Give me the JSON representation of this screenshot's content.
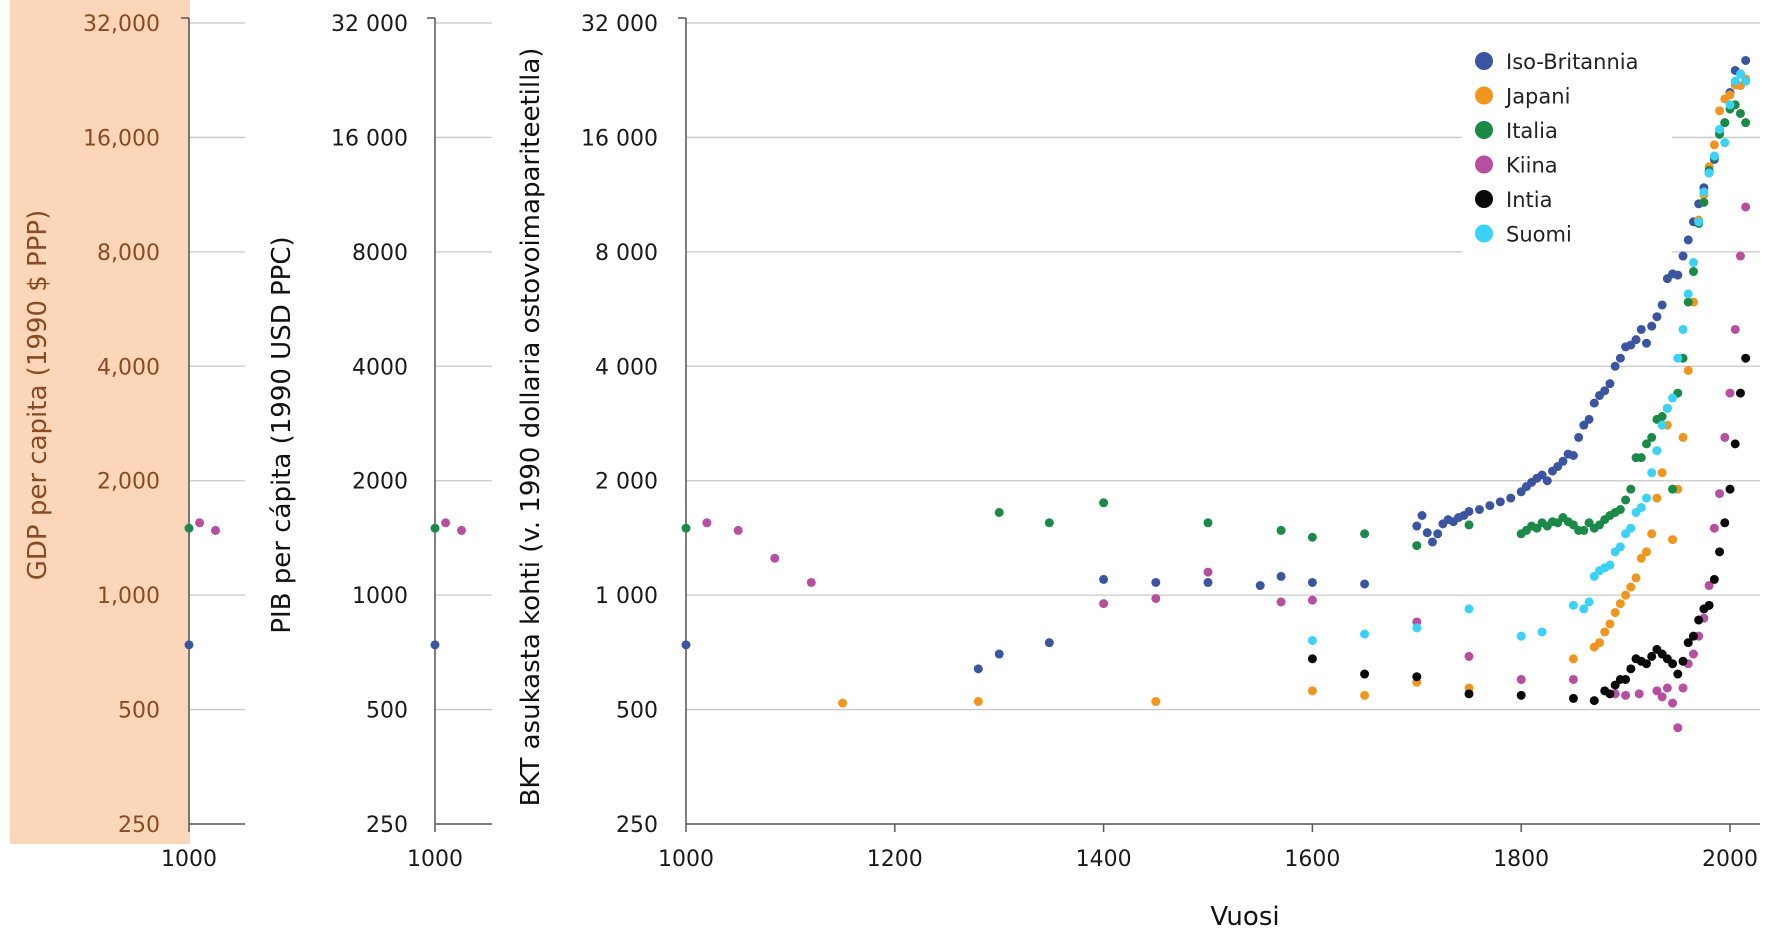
{
  "chart_data": {
    "type": "scatter",
    "xlabel": "Vuosi",
    "ylabel": "BKT asukasta kohti (v. 1990 dollaria ostovoimapariteetilla)",
    "ylabel_left": "GDP per capita (1990 $ PPP)",
    "ylabel_middle": "PIB per cápita (1990 USD PPC)",
    "y_scale": "log2",
    "ylim": [
      250,
      32000
    ],
    "xlim": [
      1000,
      2020
    ],
    "x_ticks": [
      "1000",
      "1200",
      "1400",
      "1600",
      "1800",
      "2000"
    ],
    "y_ticks": [
      250,
      500,
      1000,
      2000,
      4000,
      8000,
      16000,
      32000
    ],
    "y_tick_labels_left": [
      "250",
      "500",
      "1,000",
      "2,000",
      "4,000",
      "8,000",
      "16,000",
      "32,000"
    ],
    "y_tick_labels_middle": [
      "250",
      "500",
      "1000",
      "2000",
      "4000",
      "8000",
      "16 000",
      "32 000"
    ],
    "y_tick_labels_main": [
      "250",
      "500",
      "1 000",
      "2 000",
      "4 000",
      "8 000",
      "16 000",
      "32 000"
    ],
    "x_tick_label_small": "1000",
    "legend_position": "top-right",
    "grid": true,
    "series": [
      {
        "name": "Iso-Britannia",
        "color": "#3c55a0",
        "points": [
          [
            1000,
            740
          ],
          [
            1280,
            640
          ],
          [
            1300,
            700
          ],
          [
            1348,
            750
          ],
          [
            1400,
            1100
          ],
          [
            1450,
            1080
          ],
          [
            1500,
            1080
          ],
          [
            1550,
            1060
          ],
          [
            1570,
            1120
          ],
          [
            1600,
            1080
          ],
          [
            1650,
            1070
          ],
          [
            1700,
            1520
          ],
          [
            1705,
            1620
          ],
          [
            1710,
            1460
          ],
          [
            1715,
            1380
          ],
          [
            1720,
            1450
          ],
          [
            1725,
            1540
          ],
          [
            1730,
            1580
          ],
          [
            1735,
            1560
          ],
          [
            1740,
            1600
          ],
          [
            1745,
            1620
          ],
          [
            1750,
            1660
          ],
          [
            1760,
            1680
          ],
          [
            1770,
            1720
          ],
          [
            1780,
            1760
          ],
          [
            1790,
            1800
          ],
          [
            1800,
            1870
          ],
          [
            1805,
            1930
          ],
          [
            1810,
            1980
          ],
          [
            1815,
            2030
          ],
          [
            1820,
            2070
          ],
          [
            1825,
            2000
          ],
          [
            1830,
            2120
          ],
          [
            1835,
            2180
          ],
          [
            1840,
            2250
          ],
          [
            1845,
            2350
          ],
          [
            1850,
            2330
          ],
          [
            1855,
            2600
          ],
          [
            1860,
            2800
          ],
          [
            1865,
            2900
          ],
          [
            1870,
            3200
          ],
          [
            1875,
            3350
          ],
          [
            1880,
            3450
          ],
          [
            1885,
            3600
          ],
          [
            1890,
            4000
          ],
          [
            1895,
            4200
          ],
          [
            1900,
            4500
          ],
          [
            1905,
            4550
          ],
          [
            1910,
            4700
          ],
          [
            1915,
            5000
          ],
          [
            1920,
            4600
          ],
          [
            1925,
            5100
          ],
          [
            1930,
            5400
          ],
          [
            1935,
            5800
          ],
          [
            1940,
            6800
          ],
          [
            1945,
            7000
          ],
          [
            1950,
            6950
          ],
          [
            1955,
            7800
          ],
          [
            1960,
            8600
          ],
          [
            1965,
            9600
          ],
          [
            1970,
            10700
          ],
          [
            1975,
            11800
          ],
          [
            1980,
            12900
          ],
          [
            1985,
            14000
          ],
          [
            1990,
            16400
          ],
          [
            1995,
            17500
          ],
          [
            2000,
            21000
          ],
          [
            2005,
            24000
          ],
          [
            2010,
            23500
          ],
          [
            2015,
            25500
          ]
        ]
      },
      {
        "name": "Japani",
        "color": "#f0961e",
        "points": [
          [
            1150,
            520
          ],
          [
            1280,
            525
          ],
          [
            1450,
            525
          ],
          [
            1600,
            560
          ],
          [
            1650,
            545
          ],
          [
            1700,
            590
          ],
          [
            1750,
            570
          ],
          [
            1800,
            600
          ],
          [
            1850,
            680
          ],
          [
            1870,
            730
          ],
          [
            1875,
            750
          ],
          [
            1880,
            800
          ],
          [
            1885,
            840
          ],
          [
            1890,
            900
          ],
          [
            1895,
            950
          ],
          [
            1900,
            1000
          ],
          [
            1905,
            1050
          ],
          [
            1910,
            1110
          ],
          [
            1915,
            1250
          ],
          [
            1920,
            1300
          ],
          [
            1925,
            1450
          ],
          [
            1930,
            1800
          ],
          [
            1935,
            2100
          ],
          [
            1940,
            2800
          ],
          [
            1945,
            1400
          ],
          [
            1950,
            1900
          ],
          [
            1955,
            2600
          ],
          [
            1960,
            3900
          ],
          [
            1965,
            5900
          ],
          [
            1970,
            9700
          ],
          [
            1975,
            11300
          ],
          [
            1980,
            13400
          ],
          [
            1985,
            15300
          ],
          [
            1990,
            18800
          ],
          [
            1995,
            20200
          ],
          [
            2000,
            20700
          ],
          [
            2005,
            22000
          ],
          [
            2010,
            21900
          ],
          [
            2015,
            22800
          ]
        ]
      },
      {
        "name": "Italia",
        "color": "#1a8a46",
        "points": [
          [
            1000,
            1500
          ],
          [
            1300,
            1650
          ],
          [
            1348,
            1550
          ],
          [
            1400,
            1750
          ],
          [
            1500,
            1550
          ],
          [
            1570,
            1480
          ],
          [
            1600,
            1420
          ],
          [
            1650,
            1450
          ],
          [
            1700,
            1350
          ],
          [
            1750,
            1530
          ],
          [
            1800,
            1450
          ],
          [
            1805,
            1480
          ],
          [
            1810,
            1520
          ],
          [
            1815,
            1500
          ],
          [
            1820,
            1550
          ],
          [
            1825,
            1520
          ],
          [
            1830,
            1560
          ],
          [
            1835,
            1550
          ],
          [
            1840,
            1600
          ],
          [
            1845,
            1560
          ],
          [
            1850,
            1530
          ],
          [
            1855,
            1480
          ],
          [
            1860,
            1480
          ],
          [
            1865,
            1550
          ],
          [
            1870,
            1500
          ],
          [
            1875,
            1530
          ],
          [
            1880,
            1580
          ],
          [
            1885,
            1620
          ],
          [
            1890,
            1650
          ],
          [
            1895,
            1680
          ],
          [
            1900,
            1780
          ],
          [
            1905,
            1900
          ],
          [
            1910,
            2300
          ],
          [
            1915,
            2300
          ],
          [
            1920,
            2500
          ],
          [
            1925,
            2600
          ],
          [
            1930,
            2900
          ],
          [
            1935,
            2950
          ],
          [
            1940,
            3100
          ],
          [
            1945,
            1900
          ],
          [
            1950,
            3400
          ],
          [
            1955,
            4200
          ],
          [
            1960,
            5900
          ],
          [
            1965,
            7100
          ],
          [
            1970,
            9500
          ],
          [
            1975,
            10800
          ],
          [
            1980,
            13100
          ],
          [
            1985,
            14200
          ],
          [
            1990,
            16300
          ],
          [
            1995,
            17500
          ],
          [
            2000,
            19000
          ],
          [
            2005,
            19500
          ],
          [
            2010,
            18500
          ],
          [
            2015,
            17500
          ]
        ]
      },
      {
        "name": "Kiina",
        "color": "#b84ea0",
        "points": [
          [
            1020,
            1550
          ],
          [
            1050,
            1480
          ],
          [
            1085,
            1250
          ],
          [
            1120,
            1080
          ],
          [
            1400,
            950
          ],
          [
            1450,
            980
          ],
          [
            1500,
            1150
          ],
          [
            1570,
            960
          ],
          [
            1600,
            970
          ],
          [
            1700,
            850
          ],
          [
            1750,
            690
          ],
          [
            1800,
            600
          ],
          [
            1850,
            600
          ],
          [
            1890,
            550
          ],
          [
            1900,
            545
          ],
          [
            1913,
            550
          ],
          [
            1930,
            560
          ],
          [
            1935,
            540
          ],
          [
            1940,
            570
          ],
          [
            1945,
            520
          ],
          [
            1950,
            448
          ],
          [
            1955,
            570
          ],
          [
            1960,
            660
          ],
          [
            1965,
            700
          ],
          [
            1970,
            780
          ],
          [
            1975,
            870
          ],
          [
            1980,
            1060
          ],
          [
            1985,
            1500
          ],
          [
            1990,
            1850
          ],
          [
            1995,
            2600
          ],
          [
            2000,
            3400
          ],
          [
            2005,
            5000
          ],
          [
            2010,
            7800
          ],
          [
            2015,
            10500
          ]
        ]
      },
      {
        "name": "Intia",
        "color": "#0a0a0a",
        "points": [
          [
            1600,
            680
          ],
          [
            1650,
            620
          ],
          [
            1700,
            610
          ],
          [
            1750,
            550
          ],
          [
            1800,
            545
          ],
          [
            1850,
            535
          ],
          [
            1870,
            528
          ],
          [
            1880,
            560
          ],
          [
            1885,
            550
          ],
          [
            1890,
            580
          ],
          [
            1895,
            600
          ],
          [
            1900,
            600
          ],
          [
            1905,
            640
          ],
          [
            1910,
            680
          ],
          [
            1915,
            670
          ],
          [
            1920,
            660
          ],
          [
            1925,
            690
          ],
          [
            1930,
            720
          ],
          [
            1935,
            700
          ],
          [
            1940,
            680
          ],
          [
            1945,
            660
          ],
          [
            1950,
            620
          ],
          [
            1955,
            670
          ],
          [
            1960,
            750
          ],
          [
            1965,
            780
          ],
          [
            1970,
            860
          ],
          [
            1975,
            920
          ],
          [
            1980,
            940
          ],
          [
            1985,
            1100
          ],
          [
            1990,
            1300
          ],
          [
            1995,
            1550
          ],
          [
            2000,
            1900
          ],
          [
            2005,
            2500
          ],
          [
            2010,
            3400
          ],
          [
            2015,
            4200
          ]
        ]
      },
      {
        "name": "Suomi",
        "color": "#3ad2f5",
        "points": [
          [
            1600,
            760
          ],
          [
            1650,
            790
          ],
          [
            1700,
            820
          ],
          [
            1750,
            920
          ],
          [
            1800,
            780
          ],
          [
            1820,
            800
          ],
          [
            1850,
            940
          ],
          [
            1860,
            920
          ],
          [
            1865,
            960
          ],
          [
            1870,
            1120
          ],
          [
            1875,
            1160
          ],
          [
            1880,
            1180
          ],
          [
            1885,
            1200
          ],
          [
            1890,
            1300
          ],
          [
            1895,
            1340
          ],
          [
            1900,
            1450
          ],
          [
            1905,
            1500
          ],
          [
            1910,
            1650
          ],
          [
            1915,
            1700
          ],
          [
            1920,
            1800
          ],
          [
            1925,
            2100
          ],
          [
            1930,
            2400
          ],
          [
            1935,
            2800
          ],
          [
            1940,
            3100
          ],
          [
            1945,
            3300
          ],
          [
            1950,
            4200
          ],
          [
            1955,
            5000
          ],
          [
            1960,
            6200
          ],
          [
            1965,
            7500
          ],
          [
            1970,
            9600
          ],
          [
            1975,
            11500
          ],
          [
            1980,
            12900
          ],
          [
            1985,
            14300
          ],
          [
            1990,
            16800
          ],
          [
            1995,
            15500
          ],
          [
            2000,
            19500
          ],
          [
            2005,
            22500
          ],
          [
            2010,
            23500
          ],
          [
            2015,
            22500
          ]
        ]
      }
    ]
  }
}
